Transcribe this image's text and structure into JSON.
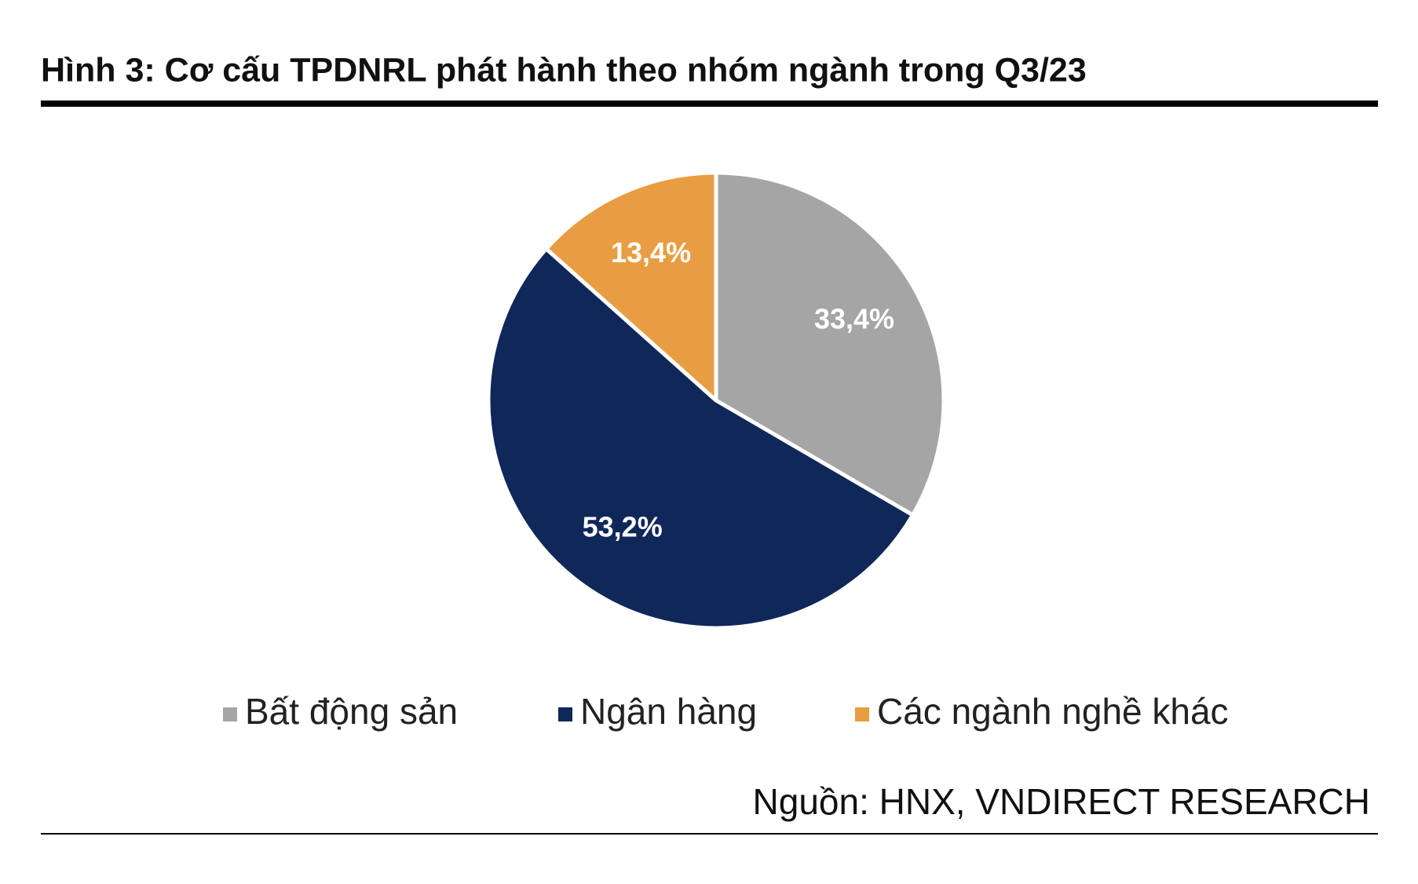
{
  "chart_data": {
    "type": "pie",
    "title": "Hình 3: Cơ cấu TPDNRL phát hành theo nhóm ngành trong Q3/23",
    "categories": [
      "Bất động sản",
      "Ngân hàng",
      "Các ngành nghề khác"
    ],
    "values": [
      33.4,
      53.2,
      13.4
    ],
    "value_labels": [
      "33,4%",
      "53,2%",
      "13,4%"
    ],
    "colors": [
      "#a5a5a5",
      "#10275a",
      "#e99d42"
    ],
    "legend": "bottom",
    "source": "Nguồn: HNX, VNDIRECT RESEARCH"
  }
}
